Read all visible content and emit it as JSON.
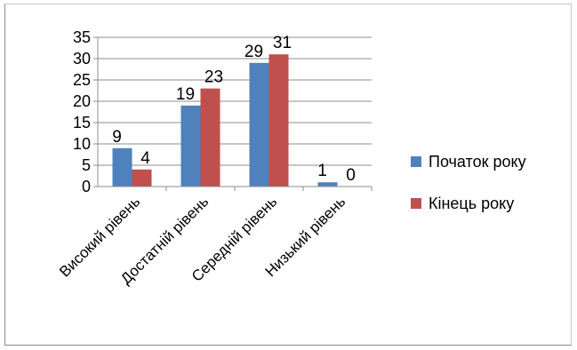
{
  "chart_data": {
    "type": "bar",
    "categories": [
      "Високий рівень",
      "Достатній рівень",
      "Середній рівень",
      "Низький рівень"
    ],
    "series": [
      {
        "name": "Початок року",
        "values": [
          9,
          19,
          29,
          1
        ],
        "color": "#4f81bd"
      },
      {
        "name": "Кінець року",
        "values": [
          4,
          23,
          31,
          0
        ],
        "color": "#c0504d"
      }
    ],
    "yticks": [
      "0",
      "5",
      "10",
      "15",
      "20",
      "25",
      "30",
      "35"
    ],
    "ylim": [
      0,
      35
    ],
    "grid": true,
    "legend_position": "right",
    "title": "",
    "xlabel": "",
    "ylabel": ""
  }
}
